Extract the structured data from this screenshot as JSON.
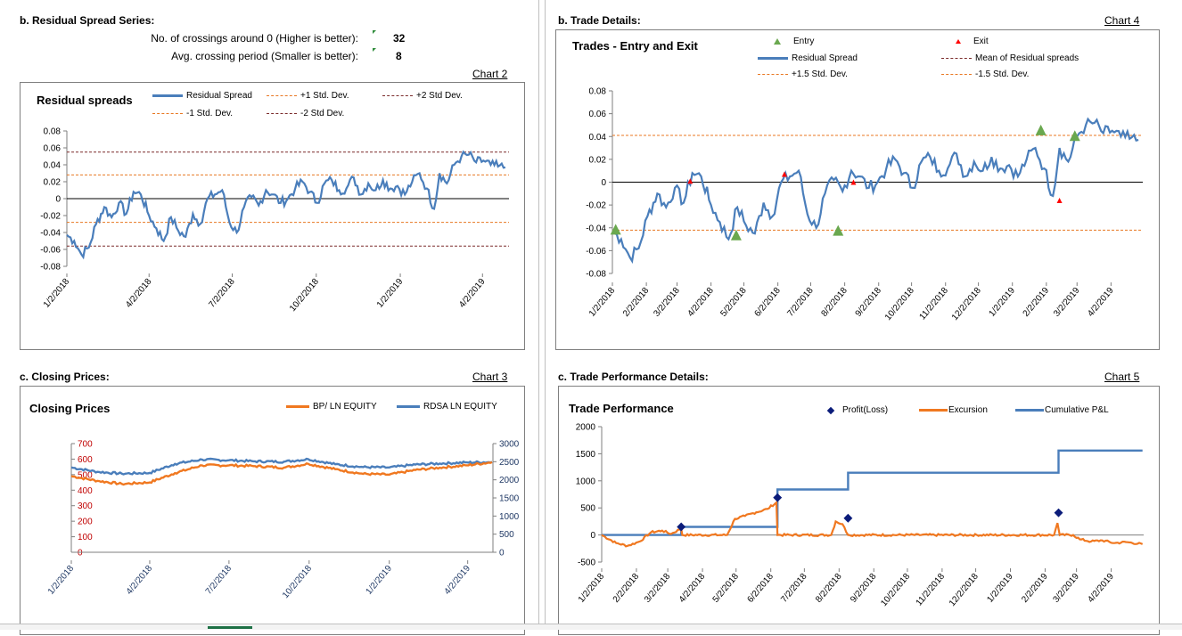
{
  "sections": {
    "residual": {
      "title": "b. Residual Spread Series:",
      "chart_label": "Chart 2"
    },
    "trade": {
      "title": "b. Trade Details:",
      "chart_label": "Chart 4"
    },
    "closing": {
      "title": "c. Closing Prices:",
      "chart_label": "Chart 3"
    },
    "performance": {
      "title": "c. Trade Performance Details:",
      "chart_label": "Chart 5"
    }
  },
  "stats": {
    "crossings_label": "No. of crossings around 0 (Higher is better):",
    "crossings_value": "32",
    "period_label": "Avg. crossing period (Smaller is better):",
    "period_value": "8"
  },
  "colors": {
    "residual": "#4a7ebb",
    "band1": "#e87722",
    "band2": "#7b2c2c",
    "bp": "#f07820",
    "rdsa": "#4a7ebb",
    "entry": "#6aa84f",
    "exit": "#ff0000",
    "profit": "#0b1c7a",
    "excursion": "#f07820",
    "cumulative": "#4a7ebb"
  },
  "chart_data": [
    {
      "id": "residual-spreads",
      "type": "line",
      "title": "Residual spreads",
      "legend": [
        "Residual Spread",
        "+1 Std. Dev.",
        "+2 Std Dev.",
        "-1 Std. Dev.",
        "-2 Std Dev."
      ],
      "ylim": [
        -0.08,
        0.08
      ],
      "yticks": [
        "0.08",
        "0.06",
        "0.04",
        "0.02",
        "0",
        "-0.02",
        "-0.04",
        "-0.06",
        "-0.08"
      ],
      "xticks": [
        "1/2/2018",
        "4/2/2018",
        "7/2/2018",
        "10/2/2018",
        "1/2/2019",
        "4/2/2019"
      ],
      "xlim": [
        "2018-01-02",
        "2019-05-01"
      ],
      "bands": {
        "plus1": 0.028,
        "plus2": 0.055,
        "minus1": -0.028,
        "minus2": -0.056
      },
      "series": [
        {
          "name": "Residual Spread",
          "x": [
            "2018-01-02",
            "2018-01-10",
            "2018-01-18",
            "2018-01-26",
            "2018-02-03",
            "2018-02-12",
            "2018-02-20",
            "2018-02-28",
            "2018-03-08",
            "2018-03-16",
            "2018-03-24",
            "2018-04-02",
            "2018-04-10",
            "2018-04-18",
            "2018-04-26",
            "2018-05-04",
            "2018-05-12",
            "2018-05-20",
            "2018-05-28",
            "2018-06-05",
            "2018-06-13",
            "2018-06-21",
            "2018-06-29",
            "2018-07-07",
            "2018-07-15",
            "2018-07-23",
            "2018-07-31",
            "2018-08-08",
            "2018-08-16",
            "2018-08-24",
            "2018-09-01",
            "2018-09-09",
            "2018-09-17",
            "2018-09-25",
            "2018-10-03",
            "2018-10-11",
            "2018-10-19",
            "2018-10-27",
            "2018-11-04",
            "2018-11-12",
            "2018-11-20",
            "2018-11-28",
            "2018-12-06",
            "2018-12-14",
            "2018-12-22",
            "2018-12-30",
            "2019-01-07",
            "2019-01-15",
            "2019-01-23",
            "2019-01-31",
            "2019-02-08",
            "2019-02-14",
            "2019-02-22",
            "2019-03-02",
            "2019-03-10",
            "2019-03-18",
            "2019-03-26",
            "2019-04-03",
            "2019-04-11",
            "2019-04-19",
            "2019-04-27"
          ],
          "values": [
            -0.043,
            -0.05,
            -0.066,
            -0.058,
            -0.03,
            -0.01,
            -0.022,
            -0.005,
            -0.018,
            0.008,
            0.005,
            -0.02,
            -0.035,
            -0.05,
            -0.022,
            -0.038,
            -0.045,
            -0.018,
            -0.03,
            0.0,
            0.005,
            0.01,
            -0.028,
            -0.04,
            -0.01,
            0.002,
            -0.008,
            0.01,
            0.005,
            -0.005,
            0.0,
            0.012,
            0.02,
            0.008,
            -0.005,
            0.018,
            0.022,
            0.01,
            0.012,
            0.025,
            0.005,
            0.018,
            0.01,
            0.022,
            0.012,
            0.015,
            0.005,
            0.02,
            0.03,
            0.012,
            -0.012,
            0.03,
            0.018,
            0.04,
            0.05,
            0.052,
            0.043,
            0.045,
            0.04,
            0.038,
            0.037
          ]
        }
      ]
    },
    {
      "id": "trades-entry-exit",
      "type": "line",
      "title": "Trades - Entry and Exit",
      "legend": [
        "Entry",
        "Exit",
        "Residual Spread",
        "Mean of Residual spreads",
        "+1.5 Std. Dev.",
        "-1.5 Std. Dev."
      ],
      "ylim": [
        -0.08,
        0.08
      ],
      "yticks": [
        "0.08",
        "0.06",
        "0.04",
        "0.02",
        "0",
        "-0.02",
        "-0.04",
        "-0.06",
        "-0.08"
      ],
      "xticks": [
        "1/2/2018",
        "2/2/2018",
        "3/2/2018",
        "4/2/2018",
        "5/2/2018",
        "6/2/2018",
        "7/2/2018",
        "8/2/2018",
        "9/2/2018",
        "10/2/2018",
        "11/2/2018",
        "12/2/2018",
        "1/2/2019",
        "2/2/2019",
        "3/2/2019",
        "4/2/2019"
      ],
      "xlim": [
        "2018-01-02",
        "2019-05-01"
      ],
      "bands": {
        "mean": 0.0,
        "plus15": 0.041,
        "minus15": -0.042
      },
      "entries": [
        {
          "x": "2018-01-05",
          "y": -0.042
        },
        {
          "x": "2018-04-25",
          "y": -0.047
        },
        {
          "x": "2018-07-27",
          "y": -0.043
        },
        {
          "x": "2019-01-28",
          "y": 0.045
        },
        {
          "x": "2019-02-28",
          "y": 0.04
        }
      ],
      "exits": [
        {
          "x": "2018-03-14",
          "y": 0.001
        },
        {
          "x": "2018-06-08",
          "y": 0.007
        },
        {
          "x": "2018-08-10",
          "y": 0.0
        },
        {
          "x": "2019-02-14",
          "y": -0.016
        }
      ]
    },
    {
      "id": "closing-prices",
      "type": "line",
      "title": "Closing Prices",
      "legend": [
        "BP/ LN EQUITY",
        "RDSA LN EQUITY"
      ],
      "ylim": [
        0,
        700
      ],
      "yticks": [
        "700",
        "600",
        "500",
        "400",
        "300",
        "200",
        "100",
        "0"
      ],
      "y2lim": [
        0,
        3000
      ],
      "y2ticks": [
        "3000",
        "2500",
        "2000",
        "1500",
        "1000",
        "500",
        "0"
      ],
      "xticks": [
        "1/2/2018",
        "4/2/2018",
        "7/2/2018",
        "10/2/2018",
        "1/2/2019",
        "4/2/2019"
      ],
      "xlim": [
        "2018-01-02",
        "2019-05-01"
      ],
      "series": [
        {
          "name": "BP/ LN EQUITY",
          "x": [
            "2018-01-02",
            "2018-02-01",
            "2018-03-01",
            "2018-04-02",
            "2018-05-01",
            "2018-06-01",
            "2018-07-02",
            "2018-08-01",
            "2018-09-03",
            "2018-10-01",
            "2018-11-01",
            "2018-12-03",
            "2019-01-02",
            "2019-02-01",
            "2019-03-01",
            "2019-04-01",
            "2019-04-30"
          ],
          "values": [
            490,
            460,
            440,
            450,
            510,
            560,
            560,
            555,
            545,
            570,
            535,
            505,
            500,
            530,
            545,
            560,
            580
          ]
        },
        {
          "name": "RDSA LN EQUITY",
          "x": [
            "2018-01-02",
            "2018-02-01",
            "2018-03-01",
            "2018-04-02",
            "2018-05-01",
            "2018-06-01",
            "2018-07-02",
            "2018-08-01",
            "2018-09-03",
            "2018-10-01",
            "2018-11-01",
            "2018-12-03",
            "2019-01-02",
            "2019-02-01",
            "2019-03-01",
            "2019-04-01",
            "2019-04-30"
          ],
          "values": [
            2340,
            2220,
            2170,
            2190,
            2440,
            2560,
            2540,
            2510,
            2500,
            2570,
            2430,
            2350,
            2340,
            2420,
            2450,
            2480,
            2490
          ]
        }
      ]
    },
    {
      "id": "trade-performance",
      "type": "line",
      "title": "Trade Performance",
      "legend": [
        "Profit(Loss)",
        "Excursion",
        "Cumulative P&L"
      ],
      "ylim": [
        -500,
        2000
      ],
      "yticks": [
        "2000",
        "1500",
        "1000",
        "500",
        "0",
        "-500"
      ],
      "xticks": [
        "1/2/2018",
        "2/2/2018",
        "3/2/2018",
        "4/2/2018",
        "5/2/2018",
        "6/2/2018",
        "7/2/2018",
        "8/2/2018",
        "9/2/2018",
        "10/2/2018",
        "11/2/2018",
        "12/2/2018",
        "1/2/2019",
        "2/2/2019",
        "3/2/2019",
        "4/2/2019"
      ],
      "xlim": [
        "2018-01-02",
        "2019-05-01"
      ],
      "profit_loss": [
        {
          "x": "2018-03-14",
          "y": 150
        },
        {
          "x": "2018-06-08",
          "y": 690
        },
        {
          "x": "2018-08-10",
          "y": 310
        },
        {
          "x": "2019-02-14",
          "y": 410
        }
      ],
      "series": [
        {
          "name": "Cumulative P&L",
          "x": [
            "2018-01-02",
            "2018-03-14",
            "2018-03-14",
            "2018-06-08",
            "2018-06-08",
            "2018-08-10",
            "2018-08-10",
            "2019-02-14",
            "2019-02-14",
            "2019-04-30"
          ],
          "values": [
            0,
            0,
            150,
            150,
            840,
            840,
            1150,
            1150,
            1560,
            1560
          ]
        },
        {
          "name": "Excursion",
          "x": [
            "2018-01-02",
            "2018-01-15",
            "2018-01-25",
            "2018-02-05",
            "2018-02-15",
            "2018-02-25",
            "2018-03-05",
            "2018-03-14",
            "2018-03-15",
            "2018-04-24",
            "2018-05-01",
            "2018-05-10",
            "2018-05-20",
            "2018-05-30",
            "2018-06-07",
            "2018-06-08",
            "2018-07-26",
            "2018-07-30",
            "2018-08-05",
            "2018-08-10",
            "2018-08-11",
            "2019-02-10",
            "2019-02-13",
            "2019-02-15",
            "2019-02-27",
            "2019-03-05",
            "2019-03-15",
            "2019-03-25",
            "2019-04-05",
            "2019-04-15",
            "2019-04-30"
          ],
          "values": [
            0,
            -150,
            -200,
            -120,
            50,
            80,
            20,
            120,
            0,
            0,
            300,
            350,
            420,
            480,
            600,
            0,
            0,
            250,
            200,
            0,
            0,
            0,
            220,
            0,
            0,
            -80,
            -120,
            -100,
            -150,
            -130,
            -170
          ]
        }
      ]
    }
  ]
}
